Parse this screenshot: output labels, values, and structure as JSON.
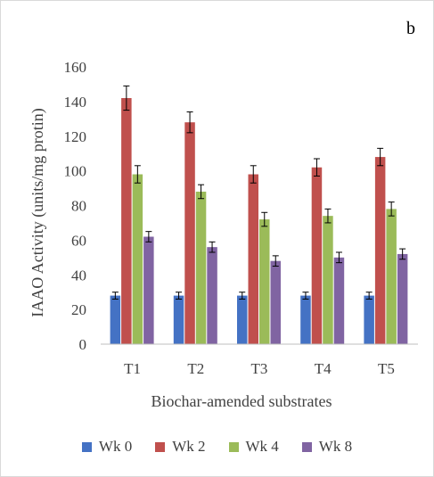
{
  "chart_data": {
    "type": "bar",
    "panel_label": "b",
    "xlabel": "Biochar-amended substrates",
    "ylabel": "IAAO Activity  (units/mg protin)",
    "ylim": [
      0,
      160
    ],
    "yticks": [
      0,
      20,
      40,
      60,
      80,
      100,
      120,
      140,
      160
    ],
    "grid": false,
    "legend_position": "bottom",
    "categories": [
      "T1",
      "T2",
      "T3",
      "T4",
      "T5"
    ],
    "series": [
      {
        "name": "Wk 0",
        "color": "#4472c4",
        "values": [
          28,
          28,
          28,
          28,
          28
        ],
        "errors": [
          2,
          2,
          2,
          2,
          2
        ]
      },
      {
        "name": "Wk 2",
        "color": "#c0504d",
        "values": [
          142,
          128,
          98,
          102,
          108
        ],
        "errors": [
          7,
          6,
          5,
          5,
          5
        ]
      },
      {
        "name": "Wk 4",
        "color": "#9bbb59",
        "values": [
          98,
          88,
          72,
          74,
          78
        ],
        "errors": [
          5,
          4,
          4,
          4,
          4
        ]
      },
      {
        "name": "Wk 8",
        "color": "#8064a2",
        "values": [
          62,
          56,
          48,
          50,
          52
        ],
        "errors": [
          3,
          3,
          3,
          3,
          3
        ]
      }
    ]
  }
}
